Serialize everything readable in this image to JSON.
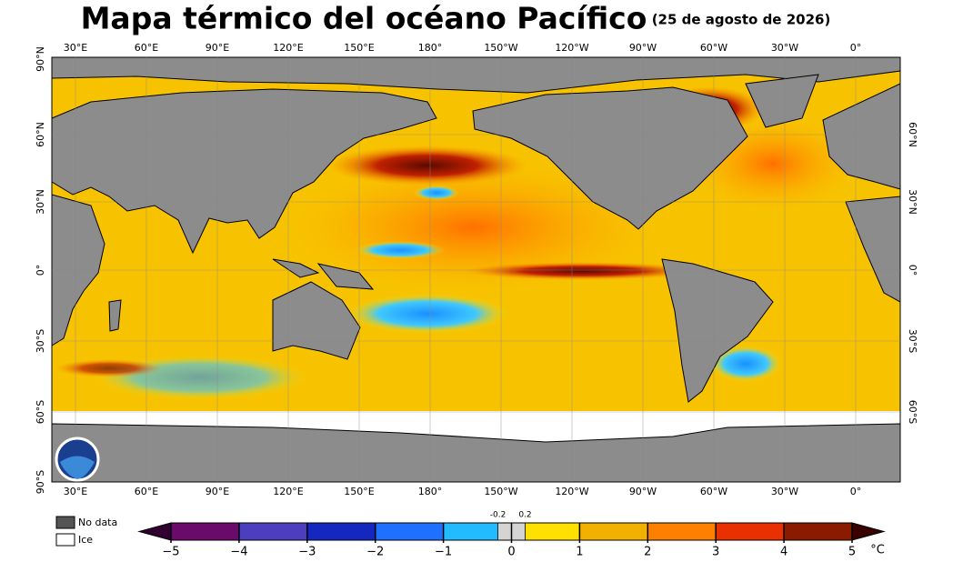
{
  "header": {
    "title": "Mapa térmico del océano Pacífico",
    "date": "(25 de agosto de 2026)"
  },
  "map": {
    "top_lon_labels": [
      "30°E",
      "60°E",
      "90°E",
      "120°E",
      "150°E",
      "180°",
      "150°W",
      "120°W",
      "90°W",
      "60°W",
      "30°W",
      "0°"
    ],
    "bottom_lon_labels": [
      "30°E",
      "60°E",
      "90°E",
      "120°E",
      "150°E",
      "180°",
      "150°W",
      "120°W",
      "90°W",
      "60°W",
      "30°W",
      "0°"
    ],
    "left_lat_labels": [
      "90°N",
      "60°N",
      "30°N",
      "0°",
      "30°S",
      "60°S",
      "90°S"
    ],
    "right_lat_labels": [
      "60°N",
      "30°N",
      "0°",
      "30°S",
      "60°S"
    ]
  },
  "legend": {
    "no_data": "No data",
    "ice": "Ice"
  },
  "colorbar": {
    "unit": "°C",
    "lim": [
      -5,
      5
    ],
    "ticks": [
      {
        "value": -5,
        "label": "−5"
      },
      {
        "value": -4,
        "label": "−4"
      },
      {
        "value": -3,
        "label": "−3"
      },
      {
        "value": -2,
        "label": "−2"
      },
      {
        "value": -1,
        "label": "−1"
      },
      0,
      1,
      2,
      3,
      4,
      5
    ],
    "minor_ticks": [
      -0.2,
      0.2
    ],
    "colors": [
      "#6a0a6a",
      "#4b3fc0",
      "#1428c0",
      "#1f70ff",
      "#22bbff",
      "#ffe000",
      "#f2b000",
      "#ff8000",
      "#e83000",
      "#8a1a00"
    ],
    "neutral_color": "#d4d4d4",
    "low_color": "#300030",
    "high_color": "#3a0000"
  }
}
